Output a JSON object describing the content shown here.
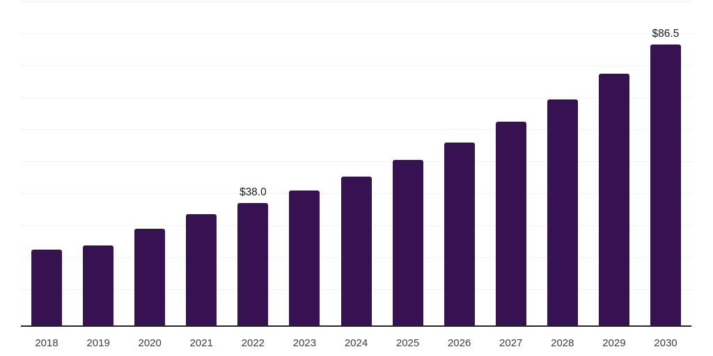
{
  "chart_data": {
    "type": "bar",
    "title": "",
    "xlabel": "",
    "ylabel": "",
    "categories": [
      "2018",
      "2019",
      "2020",
      "2021",
      "2022",
      "2023",
      "2024",
      "2025",
      "2026",
      "2027",
      "2028",
      "2029",
      "2030"
    ],
    "values": [
      23.7,
      25.0,
      30.1,
      34.5,
      38.0,
      41.7,
      46.0,
      51.1,
      56.6,
      63.0,
      69.8,
      77.7,
      86.5
    ],
    "data_labels": {
      "2022": "$38.0",
      "2030": "$86.5"
    },
    "ylim": [
      0,
      100
    ],
    "grid": "horizontal-only",
    "legend_position": "none",
    "y_axis_labels_visible": false
  },
  "colors": {
    "background": "#ffffff",
    "bar": "#371250",
    "axis_line": "#262626",
    "gridline": "#f2f2f2",
    "tick_label": "#3d3d3d",
    "value_label": "#1a1a1a"
  }
}
